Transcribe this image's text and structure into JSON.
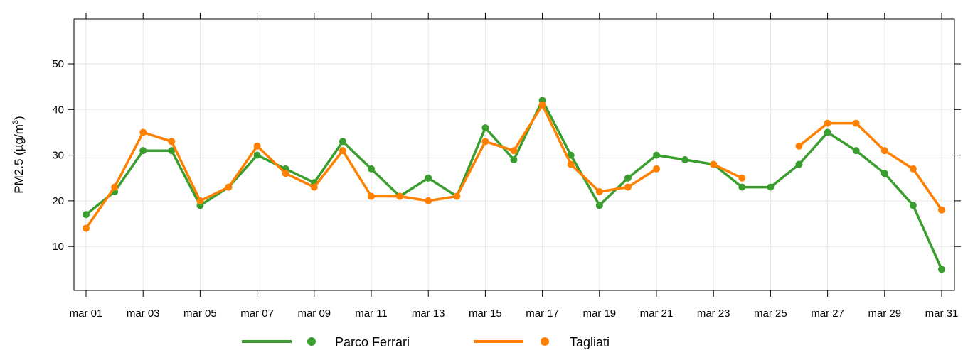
{
  "chart_data": {
    "type": "line",
    "ylabel": "PM2.5 (µg/m",
    "ylabel_sup": "3",
    "ylabel_close": ")",
    "ylim": [
      0,
      60
    ],
    "yticks": [
      10,
      20,
      30,
      40,
      50
    ],
    "grid": true,
    "legend_position": "bottom",
    "x": [
      "mar 01",
      "mar 02",
      "mar 03",
      "mar 04",
      "mar 05",
      "mar 06",
      "mar 07",
      "mar 08",
      "mar 09",
      "mar 10",
      "mar 11",
      "mar 12",
      "mar 13",
      "mar 14",
      "mar 15",
      "mar 16",
      "mar 17",
      "mar 18",
      "mar 19",
      "mar 20",
      "mar 21",
      "mar 22",
      "mar 23",
      "mar 24",
      "mar 25",
      "mar 26",
      "mar 27",
      "mar 28",
      "mar 29",
      "mar 30",
      "mar 31"
    ],
    "xtick_labels": [
      "mar 01",
      "mar 03",
      "mar 05",
      "mar 07",
      "mar 09",
      "mar 11",
      "mar 13",
      "mar 15",
      "mar 17",
      "mar 19",
      "mar 21",
      "mar 23",
      "mar 25",
      "mar 27",
      "mar 29",
      "mar 31"
    ],
    "series": [
      {
        "name": "Parco Ferrari",
        "color": "#3a9e2f",
        "values": [
          17,
          22,
          31,
          31,
          19,
          23,
          30,
          27,
          24,
          33,
          27,
          21,
          25,
          21,
          36,
          29,
          42,
          30,
          19,
          25,
          30,
          29,
          28,
          23,
          23,
          28,
          35,
          31,
          26,
          19,
          5
        ]
      },
      {
        "name": "Tagliati",
        "color": "#ff8000",
        "values": [
          14,
          23,
          35,
          33,
          20,
          23,
          32,
          26,
          23,
          31,
          21,
          21,
          20,
          21,
          33,
          31,
          41,
          28,
          22,
          23,
          27,
          null,
          28,
          25,
          null,
          32,
          37,
          37,
          31,
          27,
          18
        ]
      }
    ]
  }
}
